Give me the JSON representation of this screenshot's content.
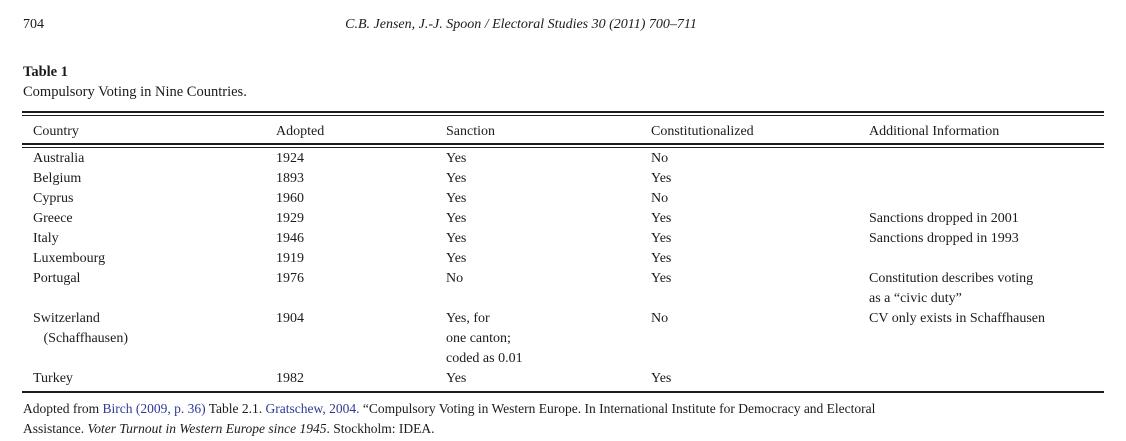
{
  "page": {
    "number": "704",
    "running_head": "C.B. Jensen, J.-J. Spoon / Electoral Studies 30 (2011) 700–711"
  },
  "table": {
    "label": "Table 1",
    "caption": "Compulsory Voting in Nine Countries.",
    "columns": [
      "Country",
      "Adopted",
      "Sanction",
      "Constitutionalized",
      "Additional Information"
    ],
    "rows": [
      {
        "country": "Australia",
        "adopted": "1924",
        "sanction": "Yes",
        "constitutionalized": "No",
        "additional": ""
      },
      {
        "country": "Belgium",
        "adopted": "1893",
        "sanction": "Yes",
        "constitutionalized": "Yes",
        "additional": ""
      },
      {
        "country": "Cyprus",
        "adopted": "1960",
        "sanction": "Yes",
        "constitutionalized": "No",
        "additional": ""
      },
      {
        "country": "Greece",
        "adopted": "1929",
        "sanction": "Yes",
        "constitutionalized": "Yes",
        "additional": "Sanctions dropped in 2001"
      },
      {
        "country": "Italy",
        "adopted": "1946",
        "sanction": "Yes",
        "constitutionalized": "Yes",
        "additional": "Sanctions dropped in 1993"
      },
      {
        "country": "Luxembourg",
        "adopted": "1919",
        "sanction": "Yes",
        "constitutionalized": "Yes",
        "additional": ""
      },
      {
        "country": "Portugal",
        "adopted": "1976",
        "sanction": "No",
        "constitutionalized": "Yes",
        "additional": "Constitution describes voting\nas a “civic duty”"
      },
      {
        "country": "Switzerland\n   (Schaffhausen)",
        "adopted": "1904",
        "sanction": "Yes, for\none canton;\ncoded as 0.01",
        "constitutionalized": "No",
        "additional": "CV only exists in Schaffhausen"
      },
      {
        "country": "Turkey",
        "adopted": "1982",
        "sanction": "Yes",
        "constitutionalized": "Yes",
        "additional": ""
      }
    ]
  },
  "footnote": {
    "line1": {
      "seg0": "Adopted from ",
      "seg1": "Birch (2009, p. 36)",
      "seg2": " Table 2.1. ",
      "seg3": "Gratschew, 2004.",
      "seg4": " “Compulsory Voting in Western Europe. In International Institute for Democracy and Electoral"
    },
    "line2": {
      "seg0": "Assistance. ",
      "seg1": "Voter Turnout in Western Europe since 1945",
      "seg2": ". Stockholm: IDEA."
    },
    "link_color": "#2e3a95"
  }
}
